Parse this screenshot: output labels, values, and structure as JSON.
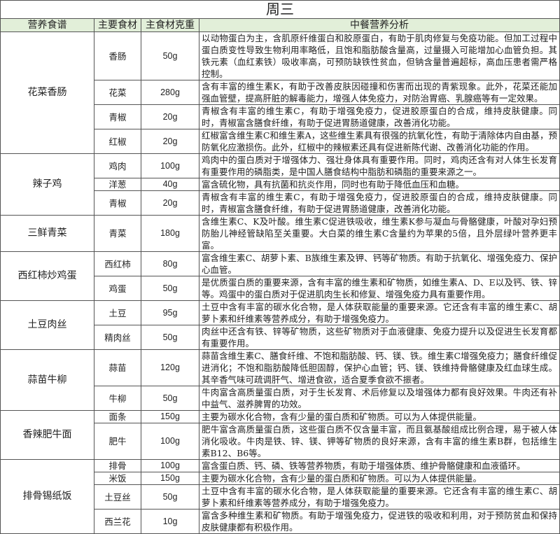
{
  "title": "周三",
  "headers": [
    "营养食谱",
    "主要食材",
    "主食材克重",
    "中餐营养分析"
  ],
  "header_bg": "#e2efd9",
  "dishes": [
    {
      "name": "花菜香肠",
      "items": [
        {
          "ingredient": "香肠",
          "weight": "50g",
          "analysis": "以动物蛋白为主，含肌原纤维蛋白和胶原蛋白，有助于肌肉修复与免疫功能。但加工过程中蛋白质变性导致生物利用率略低，且饱和脂肪酸含量高，过量摄入可能增加心血管负担。其铁元素（血红素铁）吸收率高，可预防缺铁性贫血，但钠含量普遍超标，高血压患者需严格控制。"
        },
        {
          "ingredient": "花菜",
          "weight": "280g",
          "analysis": "含有丰富的维生素K，有助于改善皮肤因碰撞和伤害而出现的青紫现象。此外，花菜还能加强血管壁，提高肝脏的解毒能力，增强人体免疫力，对防治胃癌、乳腺癌等有一定效果。"
        },
        {
          "ingredient": "青椒",
          "weight": "20g",
          "analysis": "青椒含有丰富的维生素C，有助于增强免疫力，促进胶原蛋白的合成，维持皮肤健康。同时，青椒富含膳食纤维，有助于促进胃肠道健康，改善消化功能。"
        },
        {
          "ingredient": "红椒",
          "weight": "20g",
          "analysis": "红椒富含维生素C和维生素A，这些维生素具有很强的抗氧化性，有助于清除体内自由基，预防氧化应激损伤。此外，红椒中的辣椒素还具有促进新陈代谢、改善消化功能的作用。"
        }
      ]
    },
    {
      "name": "辣子鸡",
      "items": [
        {
          "ingredient": "鸡肉",
          "weight": "100g",
          "analysis": "鸡肉中的蛋白质对于增强体力、强壮身体具有重要作用。同时，鸡肉还含有对人体生长发育有重要作用的磷脂类，是中国人膳食结构中脂肪和磷脂的重要来源之一。"
        },
        {
          "ingredient": "洋葱",
          "weight": "40g",
          "analysis": "富含硫化物，具有抗菌和抗炎作用，同时也有助于降低血压和血糖。"
        },
        {
          "ingredient": "青椒",
          "weight": "20g",
          "analysis": "青椒含有丰富的维生素C，有助于增强免疫力，促进胶原蛋白的合成，维持皮肤健康。同时，青椒富含膳食纤维，有助于促进胃肠道健康，改善消化功能。"
        }
      ]
    },
    {
      "name": "三鲜青菜",
      "items": [
        {
          "ingredient": "青菜",
          "weight": "180g",
          "analysis": "含维生素C、K及叶酸。维生素C促进铁吸收，维生素K参与凝血与骨骼健康，叶酸对孕妇预防胎儿神经管缺陷至关重要。大白菜的维生素C含量约为苹果的5倍，且外层绿叶营养更丰富。"
        }
      ]
    },
    {
      "name": "西红柿炒鸡蛋",
      "items": [
        {
          "ingredient": "西红柿",
          "weight": "80g",
          "analysis": "富含维生素C、胡萝卜素、B族维生素及钾、钙等矿物质。有助于抗氧化、增强免疫力、保护心血管。"
        },
        {
          "ingredient": "鸡蛋",
          "weight": "50g",
          "analysis": "是优质蛋白质的重要来源，含有丰富的维生素和矿物质，如维生素A、D、E以及钙、铁、锌等。鸡蛋中的蛋白质对于促进肌肉生长和修复、增强免疫力具有重要作用。"
        }
      ]
    },
    {
      "name": "土豆肉丝",
      "items": [
        {
          "ingredient": "土豆",
          "weight": "95g",
          "analysis": "土豆中含有丰富的碳水化合物，是人体获取能量的重要来源。它还含有丰富的维生素C、胡萝卜素和纤维素等营养成分，有助于增强免疫力。"
        },
        {
          "ingredient": "精肉丝",
          "weight": "50g",
          "analysis": "肉丝中还含有铁、锌等矿物质，这些矿物质对于血液健康、免疫力提升以及促进生长发育都有重要作用。"
        }
      ]
    },
    {
      "name": "蒜苗牛柳",
      "items": [
        {
          "ingredient": "蒜苗",
          "weight": "120g",
          "analysis": "蒜苗含维生素C、膳食纤维、不饱和脂肪酸、钙、镁、铁。维生素C增强免疫力；膳食纤维促进消化；不饱和脂肪酸降低胆固醇，保护心血管；钙、镁、铁维持骨骼健康及红血球生成。其辛香气味可疏调肝气、增进食欲，适合夏季食欲不振者。"
        },
        {
          "ingredient": "牛柳",
          "weight": "50g",
          "analysis": "牛肉富含高质量蛋白质，对于生长发育、术后修复以及增强体力都有良好效果。牛肉还有补中益气、滋养脾胃的功效。"
        }
      ]
    },
    {
      "name": "香辣肥牛面",
      "items": [
        {
          "ingredient": "面条",
          "weight": "150g",
          "analysis": "主要为碳水化合物，含有少量的蛋白质和矿物质。可以为人体提供能量。"
        },
        {
          "ingredient": "肥牛",
          "weight": "100g",
          "analysis": "肥牛富含高质量蛋白质，这些蛋白质不仅含量丰富，而且氨基酸组成比例合理，易于被人体消化吸收。牛肉是铁、锌、镁、钾等矿物质的良好来源，含有丰富的维生素B群，包括维生素B12、B6等。"
        }
      ]
    },
    {
      "name": "排骨锡纸饭",
      "items": [
        {
          "ingredient": "排骨",
          "weight": "100g",
          "analysis": "富含蛋白质、钙、磷、铁等营养物质，有助于增强体质、维护骨骼健康和血液循环。"
        },
        {
          "ingredient": "米饭",
          "weight": "150g",
          "analysis": "主要为碳水化合物，含有少量的蛋白质和矿物质。可以为人体提供能量。"
        },
        {
          "ingredient": "土豆丝",
          "weight": "50g",
          "analysis": "土豆中含有丰富的碳水化合物，是人体获取能量的重要来源。它还含有丰富的维生素C、胡萝卜素和纤维素等营养成分，有助于增强免疫力。"
        },
        {
          "ingredient": "西兰花",
          "weight": "10g",
          "analysis": "富含多种维生素和矿物质。有助于增强免疫力，促进铁的吸收和利用，对于预防贫血和保持皮肤健康都有积极作用。"
        }
      ]
    }
  ]
}
